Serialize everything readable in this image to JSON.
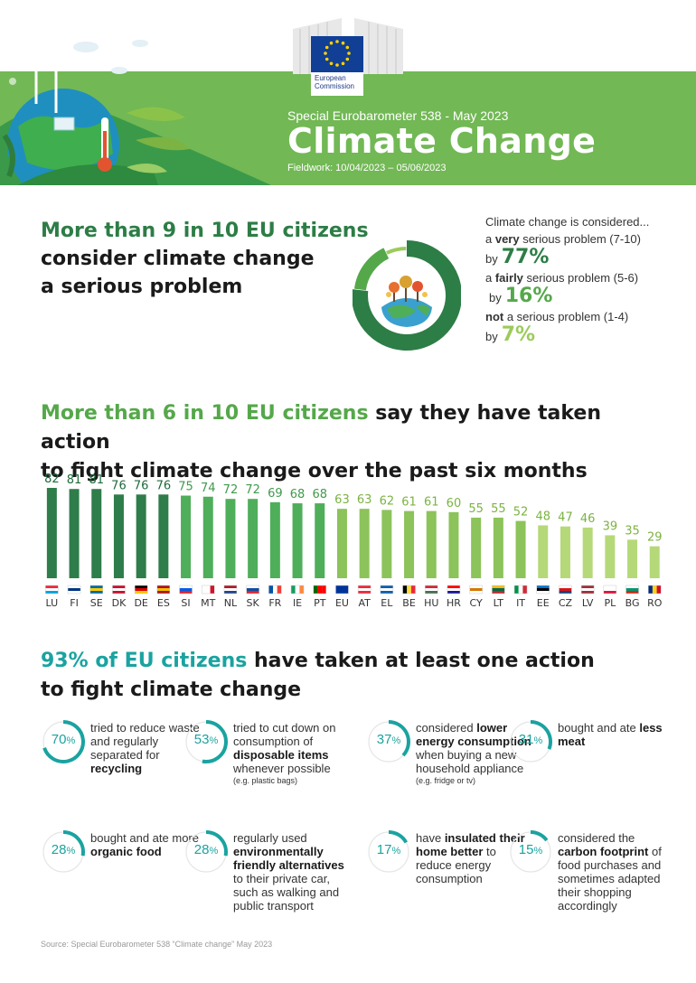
{
  "header": {
    "org_line1": "European",
    "org_line2": "Commission",
    "survey": "Special Eurobarometer 538 - May 2023",
    "title": "Climate Change",
    "fieldwork": "Fieldwork: 10/04/2023 – 05/06/2023"
  },
  "section1": {
    "headline_green": "More than 9 in 10 EU citizens",
    "headline_line2": "consider climate change",
    "headline_line3": "a serious problem",
    "intro": "Climate change is considered...",
    "stats": [
      {
        "prefix": "a ",
        "bold": "very",
        "suffix": " serious problem (7-10)",
        "by": "by",
        "pct": "77%",
        "value": 77,
        "color": "#2d7d46"
      },
      {
        "prefix": "a ",
        "bold": "fairly",
        "suffix": " serious problem (5-6)",
        "by": "by",
        "pct": "16%",
        "value": 16,
        "color": "#55a84a"
      },
      {
        "prefix": "",
        "bold": "not",
        "suffix": " a serious problem (1-4)",
        "by": "by",
        "pct": "7%",
        "value": 7,
        "color": "#9ccb5c"
      }
    ]
  },
  "section2": {
    "headline_green": "More than 6 in 10 EU citizens",
    "headline_rest": " say they have taken action",
    "headline_line2": "to fight climate change over the past six months"
  },
  "chart_data": {
    "type": "bar",
    "title": "",
    "xlabel": "",
    "ylabel": "",
    "ylim": [
      0,
      82
    ],
    "categories": [
      "LU",
      "FI",
      "SE",
      "DK",
      "DE",
      "ES",
      "SI",
      "MT",
      "NL",
      "SK",
      "FR",
      "IE",
      "PT",
      "EU",
      "AT",
      "EL",
      "BE",
      "HU",
      "HR",
      "CY",
      "LT",
      "IT",
      "EE",
      "CZ",
      "LV",
      "PL",
      "BG",
      "RO"
    ],
    "values": [
      82,
      81,
      81,
      76,
      76,
      76,
      75,
      74,
      72,
      72,
      69,
      68,
      68,
      63,
      63,
      62,
      61,
      61,
      60,
      55,
      55,
      52,
      48,
      47,
      46,
      39,
      35,
      29
    ],
    "colors": {
      "dark": "#2e7d4a",
      "mid": "#4fae5a",
      "light": "#8cc35a",
      "pale": "#b5d978"
    }
  },
  "section3": {
    "headline_teal": "93% of EU citizens",
    "headline_rest": " have taken at least one action",
    "headline_line2": "to fight climate change",
    "ring_color": "#1aa3a0",
    "actions": [
      {
        "pct": "70",
        "value": 70,
        "t1": "tried to reduce waste and regularly separated for ",
        "b": "recycling",
        "t2": "",
        "note": ""
      },
      {
        "pct": "53",
        "value": 53,
        "t1": "tried to cut down on consumption of ",
        "b": "disposable items",
        "t2": " whenever possible",
        "note": "(e.g. plastic bags)"
      },
      {
        "pct": "37",
        "value": 37,
        "t1": "considered ",
        "b": "lower energy consumption",
        "t2": " when buying a new household appliance",
        "note": "(e.g. fridge or tv)"
      },
      {
        "pct": "31",
        "value": 31,
        "t1": "bought and ate ",
        "b": "less meat",
        "t2": "",
        "note": ""
      },
      {
        "pct": "28",
        "value": 28,
        "t1": "bought and ate more ",
        "b": "organic food",
        "t2": "",
        "note": ""
      },
      {
        "pct": "28",
        "value": 28,
        "t1": "regularly used ",
        "b": "environmentally friendly alternatives",
        "t2": " to their private car, such as walking and public transport",
        "note": ""
      },
      {
        "pct": "17",
        "value": 17,
        "t1": "have ",
        "b": "insulated their home better",
        "t2": " to reduce energy consumption",
        "note": ""
      },
      {
        "pct": "15",
        "value": 15,
        "t1": "considered the ",
        "b": "carbon footprint",
        "t2": " of food purchases and sometimes adapted their shopping accordingly",
        "note": ""
      }
    ]
  },
  "source": "Source: Special Eurobarometer 538 “Climate change” May 2023"
}
